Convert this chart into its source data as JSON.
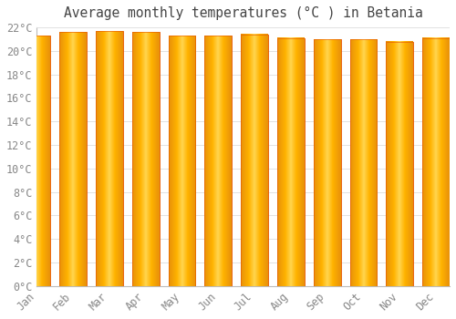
{
  "title": "Average monthly temperatures (°C ) in Betania",
  "months": [
    "Jan",
    "Feb",
    "Mar",
    "Apr",
    "May",
    "Jun",
    "Jul",
    "Aug",
    "Sep",
    "Oct",
    "Nov",
    "Dec"
  ],
  "values": [
    21.3,
    21.6,
    21.7,
    21.6,
    21.3,
    21.3,
    21.4,
    21.1,
    21.0,
    21.0,
    20.8,
    21.1
  ],
  "bar_color_center": "#FFD54F",
  "bar_color_edge": "#FFA000",
  "bar_edge_color": "#E65100",
  "background_color": "#FFFFFF",
  "plot_bg_color": "#FFFFFF",
  "grid_color": "#DDDDDD",
  "title_color": "#444444",
  "tick_color": "#888888",
  "ylim": [
    0,
    22
  ],
  "yticks": [
    0,
    2,
    4,
    6,
    8,
    10,
    12,
    14,
    16,
    18,
    20,
    22
  ],
  "title_fontsize": 10.5,
  "tick_fontsize": 8.5
}
